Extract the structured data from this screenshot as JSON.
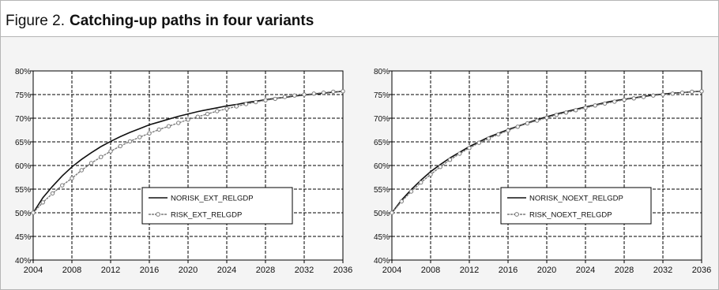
{
  "figure": {
    "label": "Figure 2.",
    "title": "Catching-up paths in four variants"
  },
  "colors": {
    "norisk": "#111111",
    "risk": "#7a7a7a",
    "grid": "#000000",
    "plot_bg": "#ffffff"
  },
  "chart_data": [
    {
      "type": "line",
      "title": "",
      "xlabel": "",
      "ylabel": "",
      "xlim": [
        2004,
        2036
      ],
      "ylim": [
        0.4,
        0.8
      ],
      "xticks": [
        "2004",
        "2008",
        "2012",
        "2016",
        "2020",
        "2024",
        "2028",
        "2032",
        "2036"
      ],
      "yticks": [
        "40%",
        "45%",
        "50%",
        "55%",
        "60%",
        "65%",
        "70%",
        "75%",
        "80%"
      ],
      "grid": true,
      "legend_position": "center-right",
      "series": [
        {
          "name": "NORISK_EXT_RELGDP",
          "marker": "none",
          "x": [
            2004,
            2005,
            2006,
            2007,
            2008,
            2009,
            2010,
            2011,
            2012,
            2013,
            2014,
            2015,
            2016,
            2017,
            2018,
            2019,
            2020,
            2021,
            2022,
            2023,
            2024,
            2025,
            2026,
            2027,
            2028,
            2029,
            2030,
            2031,
            2032,
            2033,
            2034,
            2035,
            2036
          ],
          "y": [
            0.5,
            0.532,
            0.556,
            0.578,
            0.597,
            0.613,
            0.627,
            0.64,
            0.651,
            0.661,
            0.67,
            0.678,
            0.686,
            0.692,
            0.698,
            0.704,
            0.709,
            0.714,
            0.718,
            0.722,
            0.726,
            0.729,
            0.733,
            0.736,
            0.739,
            0.742,
            0.744,
            0.747,
            0.749,
            0.751,
            0.753,
            0.755,
            0.757
          ]
        },
        {
          "name": "RISK_EXT_RELGDP",
          "marker": "circle",
          "x": [
            2004,
            2005,
            2006,
            2007,
            2008,
            2009,
            2010,
            2011,
            2012,
            2013,
            2014,
            2015,
            2016,
            2017,
            2018,
            2019,
            2020,
            2021,
            2022,
            2023,
            2024,
            2025,
            2026,
            2027,
            2028,
            2029,
            2030,
            2031,
            2032,
            2033,
            2034,
            2035,
            2036
          ],
          "y": [
            0.5,
            0.522,
            0.541,
            0.558,
            0.573,
            0.59,
            0.605,
            0.618,
            0.63,
            0.641,
            0.651,
            0.66,
            0.668,
            0.676,
            0.683,
            0.69,
            0.697,
            0.703,
            0.709,
            0.715,
            0.72,
            0.725,
            0.73,
            0.734,
            0.738,
            0.741,
            0.745,
            0.748,
            0.75,
            0.752,
            0.754,
            0.756,
            0.757
          ]
        }
      ]
    },
    {
      "type": "line",
      "title": "",
      "xlabel": "",
      "ylabel": "",
      "xlim": [
        2004,
        2036
      ],
      "ylim": [
        0.4,
        0.8
      ],
      "xticks": [
        "2004",
        "2008",
        "2012",
        "2016",
        "2020",
        "2024",
        "2028",
        "2032",
        "2036"
      ],
      "yticks": [
        "40%",
        "45%",
        "50%",
        "55%",
        "60%",
        "65%",
        "70%",
        "75%",
        "80%"
      ],
      "grid": true,
      "legend_position": "center-right",
      "series": [
        {
          "name": "NORISK_NOEXT_RELGDP",
          "marker": "none",
          "x": [
            2004,
            2005,
            2006,
            2007,
            2008,
            2009,
            2010,
            2011,
            2012,
            2013,
            2014,
            2015,
            2016,
            2017,
            2018,
            2019,
            2020,
            2021,
            2022,
            2023,
            2024,
            2025,
            2026,
            2027,
            2028,
            2029,
            2030,
            2031,
            2032,
            2033,
            2034,
            2035,
            2036
          ],
          "y": [
            0.5,
            0.527,
            0.549,
            0.569,
            0.587,
            0.602,
            0.616,
            0.628,
            0.64,
            0.65,
            0.66,
            0.668,
            0.676,
            0.683,
            0.69,
            0.697,
            0.703,
            0.709,
            0.714,
            0.719,
            0.724,
            0.728,
            0.733,
            0.737,
            0.74,
            0.743,
            0.746,
            0.749,
            0.751,
            0.753,
            0.754,
            0.756,
            0.757
          ]
        },
        {
          "name": "RISK_NOEXT_RELGDP",
          "marker": "circle",
          "x": [
            2004,
            2005,
            2006,
            2007,
            2008,
            2009,
            2010,
            2011,
            2012,
            2013,
            2014,
            2015,
            2016,
            2017,
            2018,
            2019,
            2020,
            2021,
            2022,
            2023,
            2024,
            2025,
            2026,
            2027,
            2028,
            2029,
            2030,
            2031,
            2032,
            2033,
            2034,
            2035,
            2036
          ],
          "y": [
            0.5,
            0.524,
            0.545,
            0.564,
            0.581,
            0.597,
            0.612,
            0.625,
            0.637,
            0.648,
            0.657,
            0.666,
            0.674,
            0.682,
            0.689,
            0.695,
            0.701,
            0.707,
            0.712,
            0.717,
            0.722,
            0.727,
            0.731,
            0.735,
            0.739,
            0.742,
            0.745,
            0.748,
            0.75,
            0.752,
            0.754,
            0.756,
            0.757
          ]
        }
      ]
    }
  ]
}
